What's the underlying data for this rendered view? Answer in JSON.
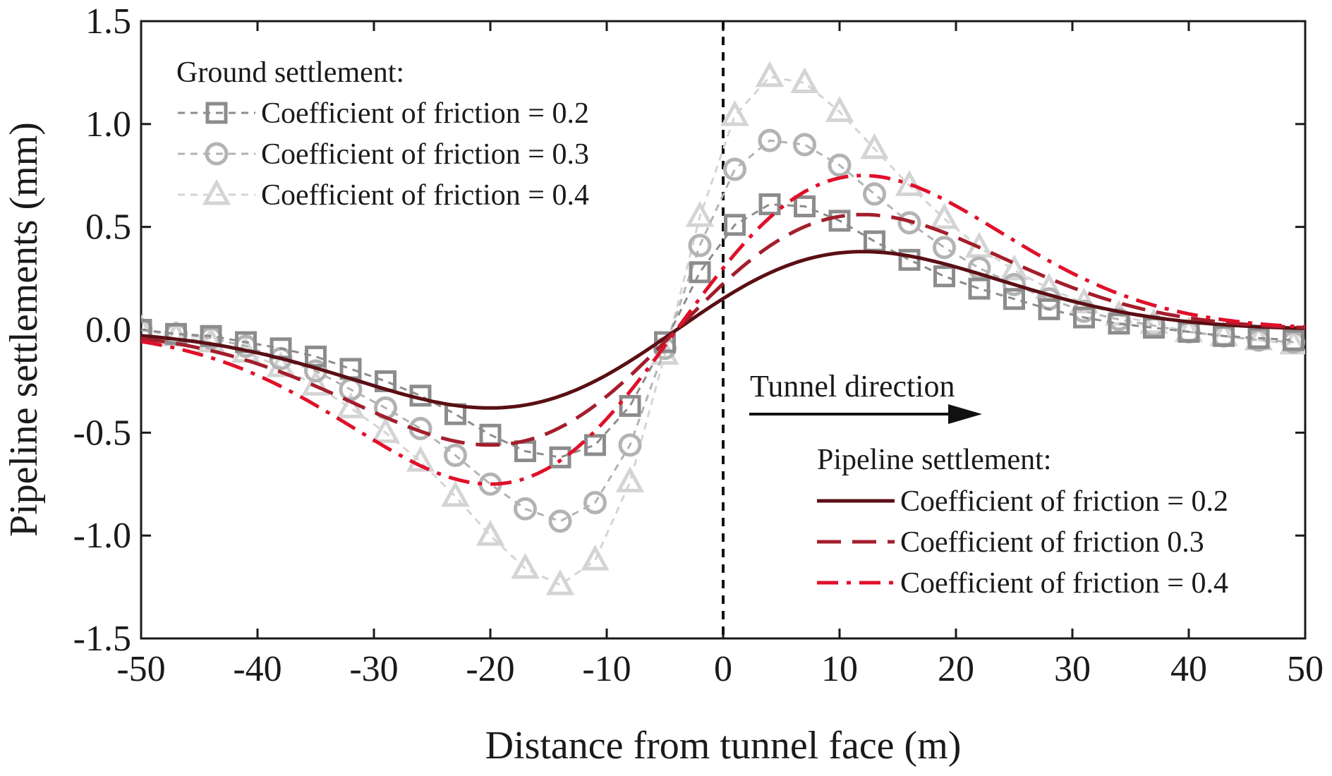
{
  "chart_data": {
    "type": "line",
    "xlabel": "Distance from tunnel face (m)",
    "ylabel": "Pipeline settlements (mm)",
    "xlim": [
      -50,
      50
    ],
    "ylim": [
      -1.5,
      1.5
    ],
    "xticks": [
      "-50",
      "-40",
      "-30",
      "-20",
      "-10",
      "0",
      "10",
      "20",
      "30",
      "40",
      "50"
    ],
    "yticks": [
      "1.5",
      "1.0",
      "0.5",
      "0.0",
      "-0.5",
      "-1.0",
      "-1.5"
    ],
    "xtick_values": [
      -50,
      -40,
      -30,
      -20,
      -10,
      0,
      10,
      20,
      30,
      40,
      50
    ],
    "ytick_values": [
      1.5,
      1.0,
      0.5,
      0.0,
      -0.5,
      -1.0,
      -1.5
    ],
    "x": [
      -50,
      -47,
      -44,
      -41,
      -38,
      -35,
      -32,
      -29,
      -26,
      -23,
      -20,
      -17,
      -14,
      -11,
      -8,
      -5,
      -2,
      1,
      4,
      7,
      10,
      13,
      16,
      19,
      22,
      25,
      28,
      31,
      34,
      37,
      40,
      43,
      46,
      49
    ],
    "ground_series": [
      {
        "name": "Coefficient of friction = 0.2",
        "marker": "square",
        "color": "#8c8c8c",
        "values": [
          0.0,
          -0.02,
          -0.03,
          -0.06,
          -0.09,
          -0.13,
          -0.19,
          -0.25,
          -0.32,
          -0.41,
          -0.51,
          -0.59,
          -0.62,
          -0.56,
          -0.37,
          -0.06,
          0.28,
          0.51,
          0.61,
          0.6,
          0.53,
          0.43,
          0.34,
          0.26,
          0.2,
          0.15,
          0.1,
          0.06,
          0.03,
          0.01,
          -0.01,
          -0.03,
          -0.04,
          -0.05
        ]
      },
      {
        "name": "Coefficient of friction = 0.3",
        "marker": "circle",
        "color": "#b3b3b3",
        "values": [
          0.0,
          -0.02,
          -0.04,
          -0.08,
          -0.14,
          -0.2,
          -0.29,
          -0.38,
          -0.48,
          -0.61,
          -0.75,
          -0.87,
          -0.93,
          -0.84,
          -0.56,
          -0.09,
          0.41,
          0.78,
          0.92,
          0.9,
          0.8,
          0.66,
          0.52,
          0.4,
          0.3,
          0.22,
          0.15,
          0.09,
          0.05,
          0.02,
          -0.01,
          -0.03,
          -0.05,
          -0.06
        ]
      },
      {
        "name": "Coefficient of friction = 0.4",
        "marker": "triangle",
        "color": "#d4d4d4",
        "values": [
          0.0,
          -0.03,
          -0.06,
          -0.11,
          -0.18,
          -0.27,
          -0.38,
          -0.5,
          -0.64,
          -0.81,
          -1.0,
          -1.16,
          -1.24,
          -1.12,
          -0.74,
          -0.12,
          0.55,
          1.04,
          1.23,
          1.2,
          1.06,
          0.88,
          0.7,
          0.54,
          0.4,
          0.29,
          0.2,
          0.13,
          0.07,
          0.03,
          -0.01,
          -0.03,
          -0.05,
          -0.07
        ]
      }
    ],
    "pipeline_series": [
      {
        "name": "Coefficient of friction = 0.2",
        "style": "solid",
        "color": "#5a0f14",
        "amplitude": 0.38
      },
      {
        "name": "Coefficient of friction   0.3",
        "style": "dash",
        "color": "#a31e2c",
        "amplitude": 0.56
      },
      {
        "name": "Coefficient of friction = 0.4",
        "style": "dashdot",
        "color": "#e0102a",
        "amplitude": 0.75
      }
    ],
    "pipeline_curve": {
      "center_x": -4,
      "peak_offset": 16,
      "width": 12
    },
    "legend_ground_title": "Ground settlement:",
    "legend_pipeline_title": "Pipeline settlement:",
    "annotation": "Tunnel direction",
    "tunnel_face_x": 0
  }
}
